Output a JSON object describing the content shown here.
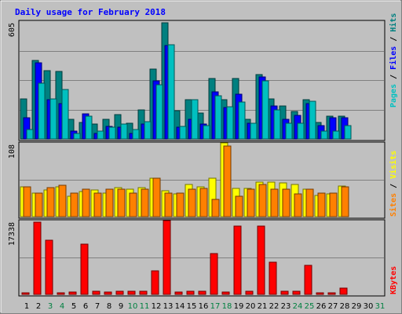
{
  "title": "Daily usage for February 2018",
  "days": [
    "1",
    "2",
    "3",
    "4",
    "5",
    "6",
    "7",
    "8",
    "9",
    "10",
    "11",
    "12",
    "13",
    "14",
    "15",
    "16",
    "17",
    "18",
    "19",
    "20",
    "21",
    "22",
    "23",
    "24",
    "25",
    "26",
    "27",
    "28",
    "29",
    "30",
    "31"
  ],
  "weekend_days": [
    "3",
    "4",
    "10",
    "11",
    "17",
    "18",
    "24",
    "25",
    "31"
  ],
  "colors": {
    "background": "#c0c0c0",
    "title": "#0000ff",
    "pages": "#00c0c0",
    "files": "#0000ff",
    "hits": "#008080",
    "visits": "#ffff00",
    "sites": "#ff8000",
    "kbytes": "#ff0000",
    "weekend_label": "#008040",
    "weekday_label": "#000000"
  },
  "chart_data": [
    {
      "type": "bar",
      "panel": "hits-files-pages",
      "ymax_label": "605",
      "ylim": [
        0,
        605
      ],
      "categories": [
        "1",
        "2",
        "3",
        "4",
        "5",
        "6",
        "7",
        "8",
        "9",
        "10",
        "11",
        "12",
        "13",
        "14",
        "15",
        "16",
        "17",
        "18",
        "19",
        "20",
        "21",
        "22",
        "23",
        "24",
        "25",
        "26",
        "27",
        "28"
      ],
      "series": [
        {
          "name": "Hits",
          "values": [
            205,
            405,
            350,
            345,
            100,
            85,
            78,
            100,
            125,
            80,
            150,
            360,
            595,
            145,
            200,
            135,
            310,
            200,
            310,
            100,
            330,
            205,
            170,
            140,
            200,
            85,
            115,
            115
          ]
        },
        {
          "name": "Files",
          "values": [
            110,
            390,
            200,
            180,
            40,
            130,
            30,
            65,
            60,
            30,
            75,
            300,
            480,
            60,
            100,
            75,
            240,
            160,
            230,
            80,
            320,
            170,
            100,
            120,
            180,
            70,
            110,
            110
          ]
        },
        {
          "name": "Pages",
          "values": [
            50,
            285,
            205,
            255,
            30,
            115,
            40,
            60,
            75,
            50,
            90,
            280,
            485,
            65,
            200,
            70,
            220,
            165,
            190,
            80,
            300,
            150,
            80,
            80,
            195,
            40,
            40,
            70
          ]
        }
      ],
      "legend": [
        "Pages",
        "Files",
        "Hits"
      ]
    },
    {
      "type": "bar",
      "panel": "visits-sites",
      "ymax_label": "108",
      "ylim": [
        0,
        108
      ],
      "categories": [
        "1",
        "2",
        "3",
        "4",
        "5",
        "6",
        "7",
        "8",
        "9",
        "10",
        "11",
        "12",
        "13",
        "14",
        "15",
        "16",
        "17",
        "18",
        "19",
        "20",
        "21",
        "22",
        "23",
        "24",
        "25",
        "26",
        "27",
        "28"
      ],
      "series": [
        {
          "name": "Visits",
          "values": [
            44,
            35,
            39,
            44,
            30,
            37,
            39,
            34,
            43,
            40,
            42,
            56,
            38,
            33,
            47,
            44,
            56,
            108,
            41,
            41,
            51,
            50,
            49,
            47,
            40,
            31,
            33,
            45
          ]
        },
        {
          "name": "Sites",
          "values": [
            44,
            35,
            42,
            46,
            35,
            40,
            35,
            40,
            40,
            35,
            40,
            56,
            35,
            35,
            40,
            41,
            25,
            103,
            30,
            40,
            47,
            40,
            40,
            33,
            40,
            34,
            35,
            44
          ]
        }
      ],
      "legend": [
        "Sites",
        "Visits"
      ]
    },
    {
      "type": "bar",
      "panel": "kbytes",
      "ymax_label": "17338",
      "ylim": [
        0,
        17338
      ],
      "categories": [
        "1",
        "2",
        "3",
        "4",
        "5",
        "6",
        "7",
        "8",
        "9",
        "10",
        "11",
        "12",
        "13",
        "14",
        "15",
        "16",
        "17",
        "18",
        "19",
        "20",
        "21",
        "22",
        "23",
        "24",
        "25",
        "26",
        "27",
        "28"
      ],
      "series": [
        {
          "name": "KBytes",
          "values": [
            300,
            16900,
            12700,
            300,
            500,
            11800,
            800,
            600,
            700,
            700,
            800,
            5600,
            17600,
            500,
            800,
            700,
            9500,
            600,
            16100,
            700,
            16100,
            7500,
            800,
            800,
            6800,
            400,
            400,
            1500
          ]
        }
      ],
      "legend": [
        "KBytes"
      ]
    }
  ]
}
